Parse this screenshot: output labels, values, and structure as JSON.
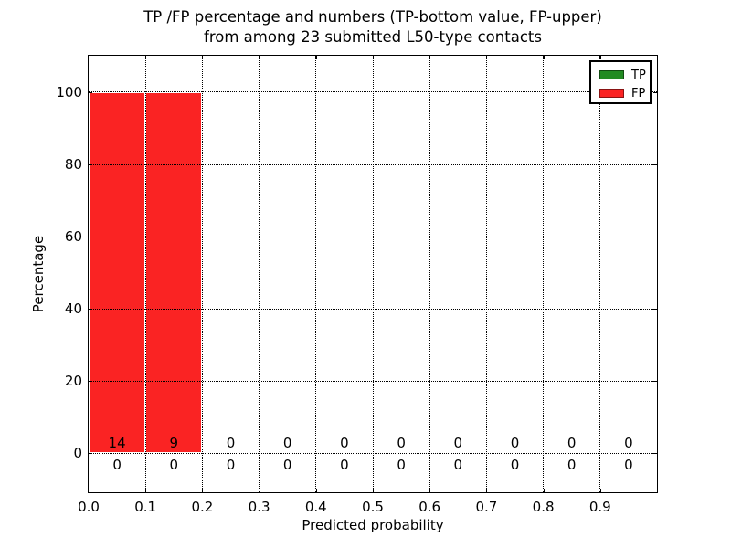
{
  "figure": {
    "title_line1": "TP /FP percentage and numbers (TP-bottom value, FP-upper)",
    "title_line2": "from among 23 submitted L50-type contacts",
    "xlabel": "Predicted probability",
    "ylabel": "Percentage"
  },
  "legend": {
    "position": "upper-right",
    "items": [
      {
        "label": "TP",
        "color": "#228b22"
      },
      {
        "label": "FP",
        "color": "#fa2323"
      }
    ]
  },
  "chart_data": {
    "type": "bar",
    "stacked": true,
    "title": "TP /FP percentage and numbers (TP-bottom value, FP-upper)\nfrom among 23 submitted L50-type contacts",
    "xlabel": "Predicted probability",
    "ylabel": "Percentage",
    "xlim": [
      0.0,
      1.0
    ],
    "ylim": [
      -10.8,
      110.1
    ],
    "grid": true,
    "grid_style": "dotted",
    "legend_position": "upper right",
    "bin_edges": [
      0.0,
      0.1,
      0.2,
      0.3,
      0.4,
      0.5,
      0.6,
      0.7,
      0.8,
      0.9,
      1.0
    ],
    "xticks": [
      0.0,
      0.1,
      0.2,
      0.3,
      0.4,
      0.5,
      0.6,
      0.7,
      0.8,
      0.9
    ],
    "xticklabels": [
      "0.0",
      "0.1",
      "0.2",
      "0.3",
      "0.4",
      "0.5",
      "0.6",
      "0.7",
      "0.8",
      "0.9"
    ],
    "yticks": [
      0,
      20,
      40,
      60,
      80,
      100
    ],
    "yticklabels": [
      "0",
      "20",
      "40",
      "60",
      "80",
      "100"
    ],
    "series": [
      {
        "name": "TP",
        "color": "#228b22",
        "percent": [
          0,
          0,
          0,
          0,
          0,
          0,
          0,
          0,
          0,
          0
        ],
        "counts": [
          0,
          0,
          0,
          0,
          0,
          0,
          0,
          0,
          0,
          0
        ],
        "count_label_row": "below-axis"
      },
      {
        "name": "FP",
        "color": "#fa2323",
        "percent": [
          100,
          100,
          0,
          0,
          0,
          0,
          0,
          0,
          0,
          0
        ],
        "counts": [
          14,
          9,
          0,
          0,
          0,
          0,
          0,
          0,
          0,
          0
        ],
        "count_label_row": "above-axis"
      }
    ]
  }
}
